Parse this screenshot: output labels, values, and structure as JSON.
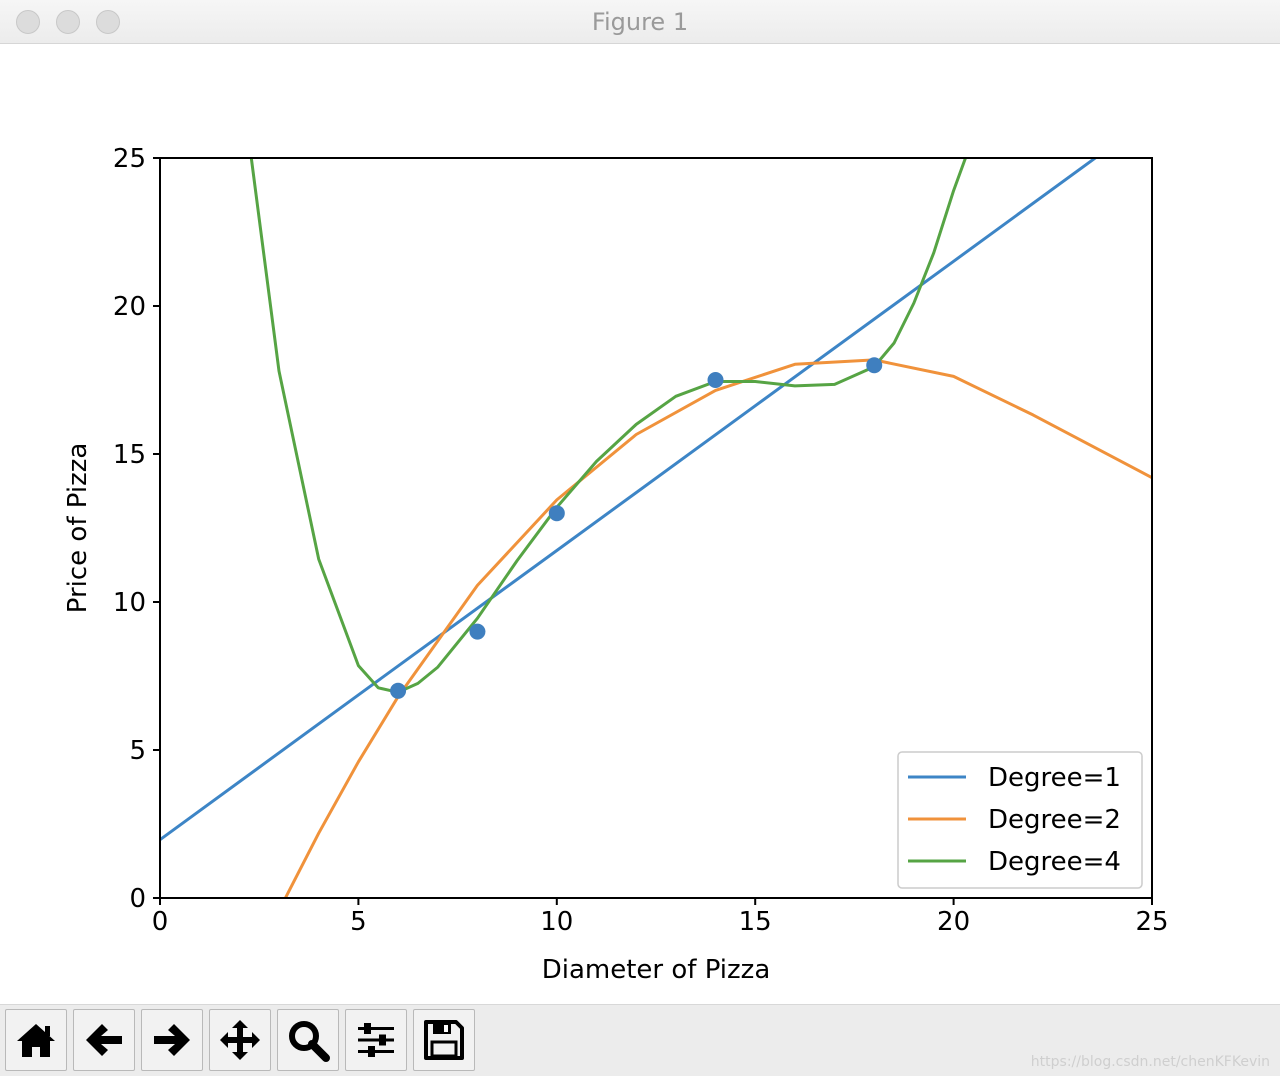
{
  "window": {
    "title": "Figure 1"
  },
  "chart_data": {
    "type": "line",
    "title": "",
    "xlabel": "Diameter of Pizza",
    "ylabel": "Price of Pizza",
    "xlim": [
      0,
      25
    ],
    "ylim": [
      0,
      25
    ],
    "xticks": [
      0,
      5,
      10,
      15,
      20,
      25
    ],
    "yticks": [
      0,
      5,
      10,
      15,
      20,
      25
    ],
    "grid": false,
    "legend_position": "lower right",
    "scatter": {
      "color": "#3f7fbf",
      "x": [
        6,
        8,
        10,
        14,
        18
      ],
      "y": [
        7,
        9,
        13,
        17.5,
        18
      ]
    },
    "series": [
      {
        "name": "Degree=1",
        "color": "#3d85c6",
        "x": [
          0,
          5,
          10,
          15,
          20,
          25
        ],
        "y": [
          1.97,
          6.86,
          11.74,
          16.63,
          21.51,
          26.4
        ]
      },
      {
        "name": "Degree=2",
        "color": "#f0923b",
        "x": [
          3.16,
          4,
          5,
          6,
          8,
          10,
          12,
          14,
          16,
          18,
          20,
          22,
          25
        ],
        "y": [
          0.0,
          2.19,
          4.6,
          6.8,
          10.56,
          13.45,
          15.66,
          17.15,
          18.03,
          18.18,
          17.62,
          16.32,
          14.2
        ]
      },
      {
        "name": "Degree=4",
        "color": "#56a444",
        "x": [
          2.3,
          3,
          4,
          5,
          5.5,
          6,
          6.5,
          7,
          8,
          9,
          10,
          11,
          12,
          13,
          14,
          15,
          16,
          17,
          18,
          18.5,
          19,
          19.5,
          20,
          20.3
        ],
        "y": [
          25.0,
          17.8,
          11.45,
          7.85,
          7.1,
          6.95,
          7.25,
          7.8,
          9.45,
          11.4,
          13.2,
          14.75,
          16.0,
          16.95,
          17.45,
          17.45,
          17.3,
          17.35,
          17.95,
          18.75,
          20.1,
          21.8,
          23.9,
          25.0
        ]
      }
    ]
  },
  "toolbar": {
    "buttons": [
      {
        "name": "home-button",
        "icon": "home-icon"
      },
      {
        "name": "back-button",
        "icon": "arrow-left-icon"
      },
      {
        "name": "forward-button",
        "icon": "arrow-right-icon"
      },
      {
        "name": "pan-button",
        "icon": "move-icon"
      },
      {
        "name": "zoom-button",
        "icon": "magnifier-icon"
      },
      {
        "name": "configure-subplots-button",
        "icon": "sliders-icon"
      },
      {
        "name": "save-button",
        "icon": "floppy-disk-icon"
      }
    ]
  },
  "watermark": "https://blog.csdn.net/chenKFKevin"
}
